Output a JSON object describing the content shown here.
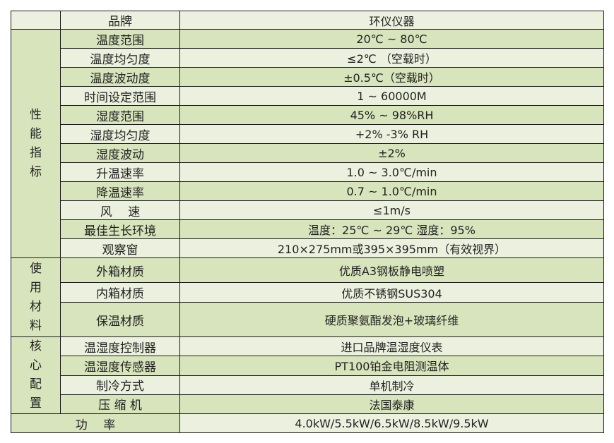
{
  "header": {
    "label": "品牌",
    "value": "环仪仪器"
  },
  "sections": [
    {
      "title": [
        "性",
        "能",
        "指",
        "标"
      ],
      "rows": [
        {
          "label": "温度范围",
          "value": "20℃ ~ 80℃"
        },
        {
          "label": "温度均匀度",
          "value": "≤2℃ （空载时）"
        },
        {
          "label": "温度波动度",
          "value": "±0.5℃（空载时）"
        },
        {
          "label": "时间设定范围",
          "value": "1 ~ 60000M"
        },
        {
          "label": "湿度范围",
          "value": "45% ~ 98%RH"
        },
        {
          "label": "湿度均匀度",
          "value": "+2% -3% RH"
        },
        {
          "label": "湿度波动",
          "value": "±2%"
        },
        {
          "label": "升温速率",
          "value": "1.0 ~ 3.0℃/min"
        },
        {
          "label": "降温速率",
          "value": "0.7 ~ 1.0℃/min"
        },
        {
          "label": "风　 速",
          "value": "≤1m/s"
        },
        {
          "label": "最佳生长环境",
          "value": "温度：25℃ ~ 29℃ 湿度：95%"
        },
        {
          "label": "观察窗",
          "value": "210×275mm或395×395mm（有效视界）"
        }
      ]
    },
    {
      "title": [
        "使",
        "用",
        "材",
        "料"
      ],
      "rows": [
        {
          "label": "外箱材质",
          "value": "优质A3钢板静电喷塑"
        },
        {
          "label": "内箱材质",
          "value": "优质不锈钢SUS304"
        },
        {
          "label": "保温材质",
          "value": "硬质聚氨酯发泡+玻璃纤维"
        }
      ]
    },
    {
      "title": [
        "核",
        "心",
        "配",
        "置"
      ],
      "rows": [
        {
          "label": "温湿度控制器",
          "value": "进口品牌温湿度仪表"
        },
        {
          "label": "温湿度传感器",
          "value": "PT100铂金电阻测温体"
        },
        {
          "label": "制冷方式",
          "value": "单机制冷"
        },
        {
          "label": "压 缩 机",
          "value": "法国泰康"
        }
      ]
    }
  ],
  "footer": {
    "label": "功　 率",
    "value": "4.0kW/5.5kW/6.5kW/8.5kW/9.5kW"
  },
  "colors": {
    "green": "#d8e4bc",
    "light": "#ebf1de",
    "border": "#1a1a1a"
  }
}
